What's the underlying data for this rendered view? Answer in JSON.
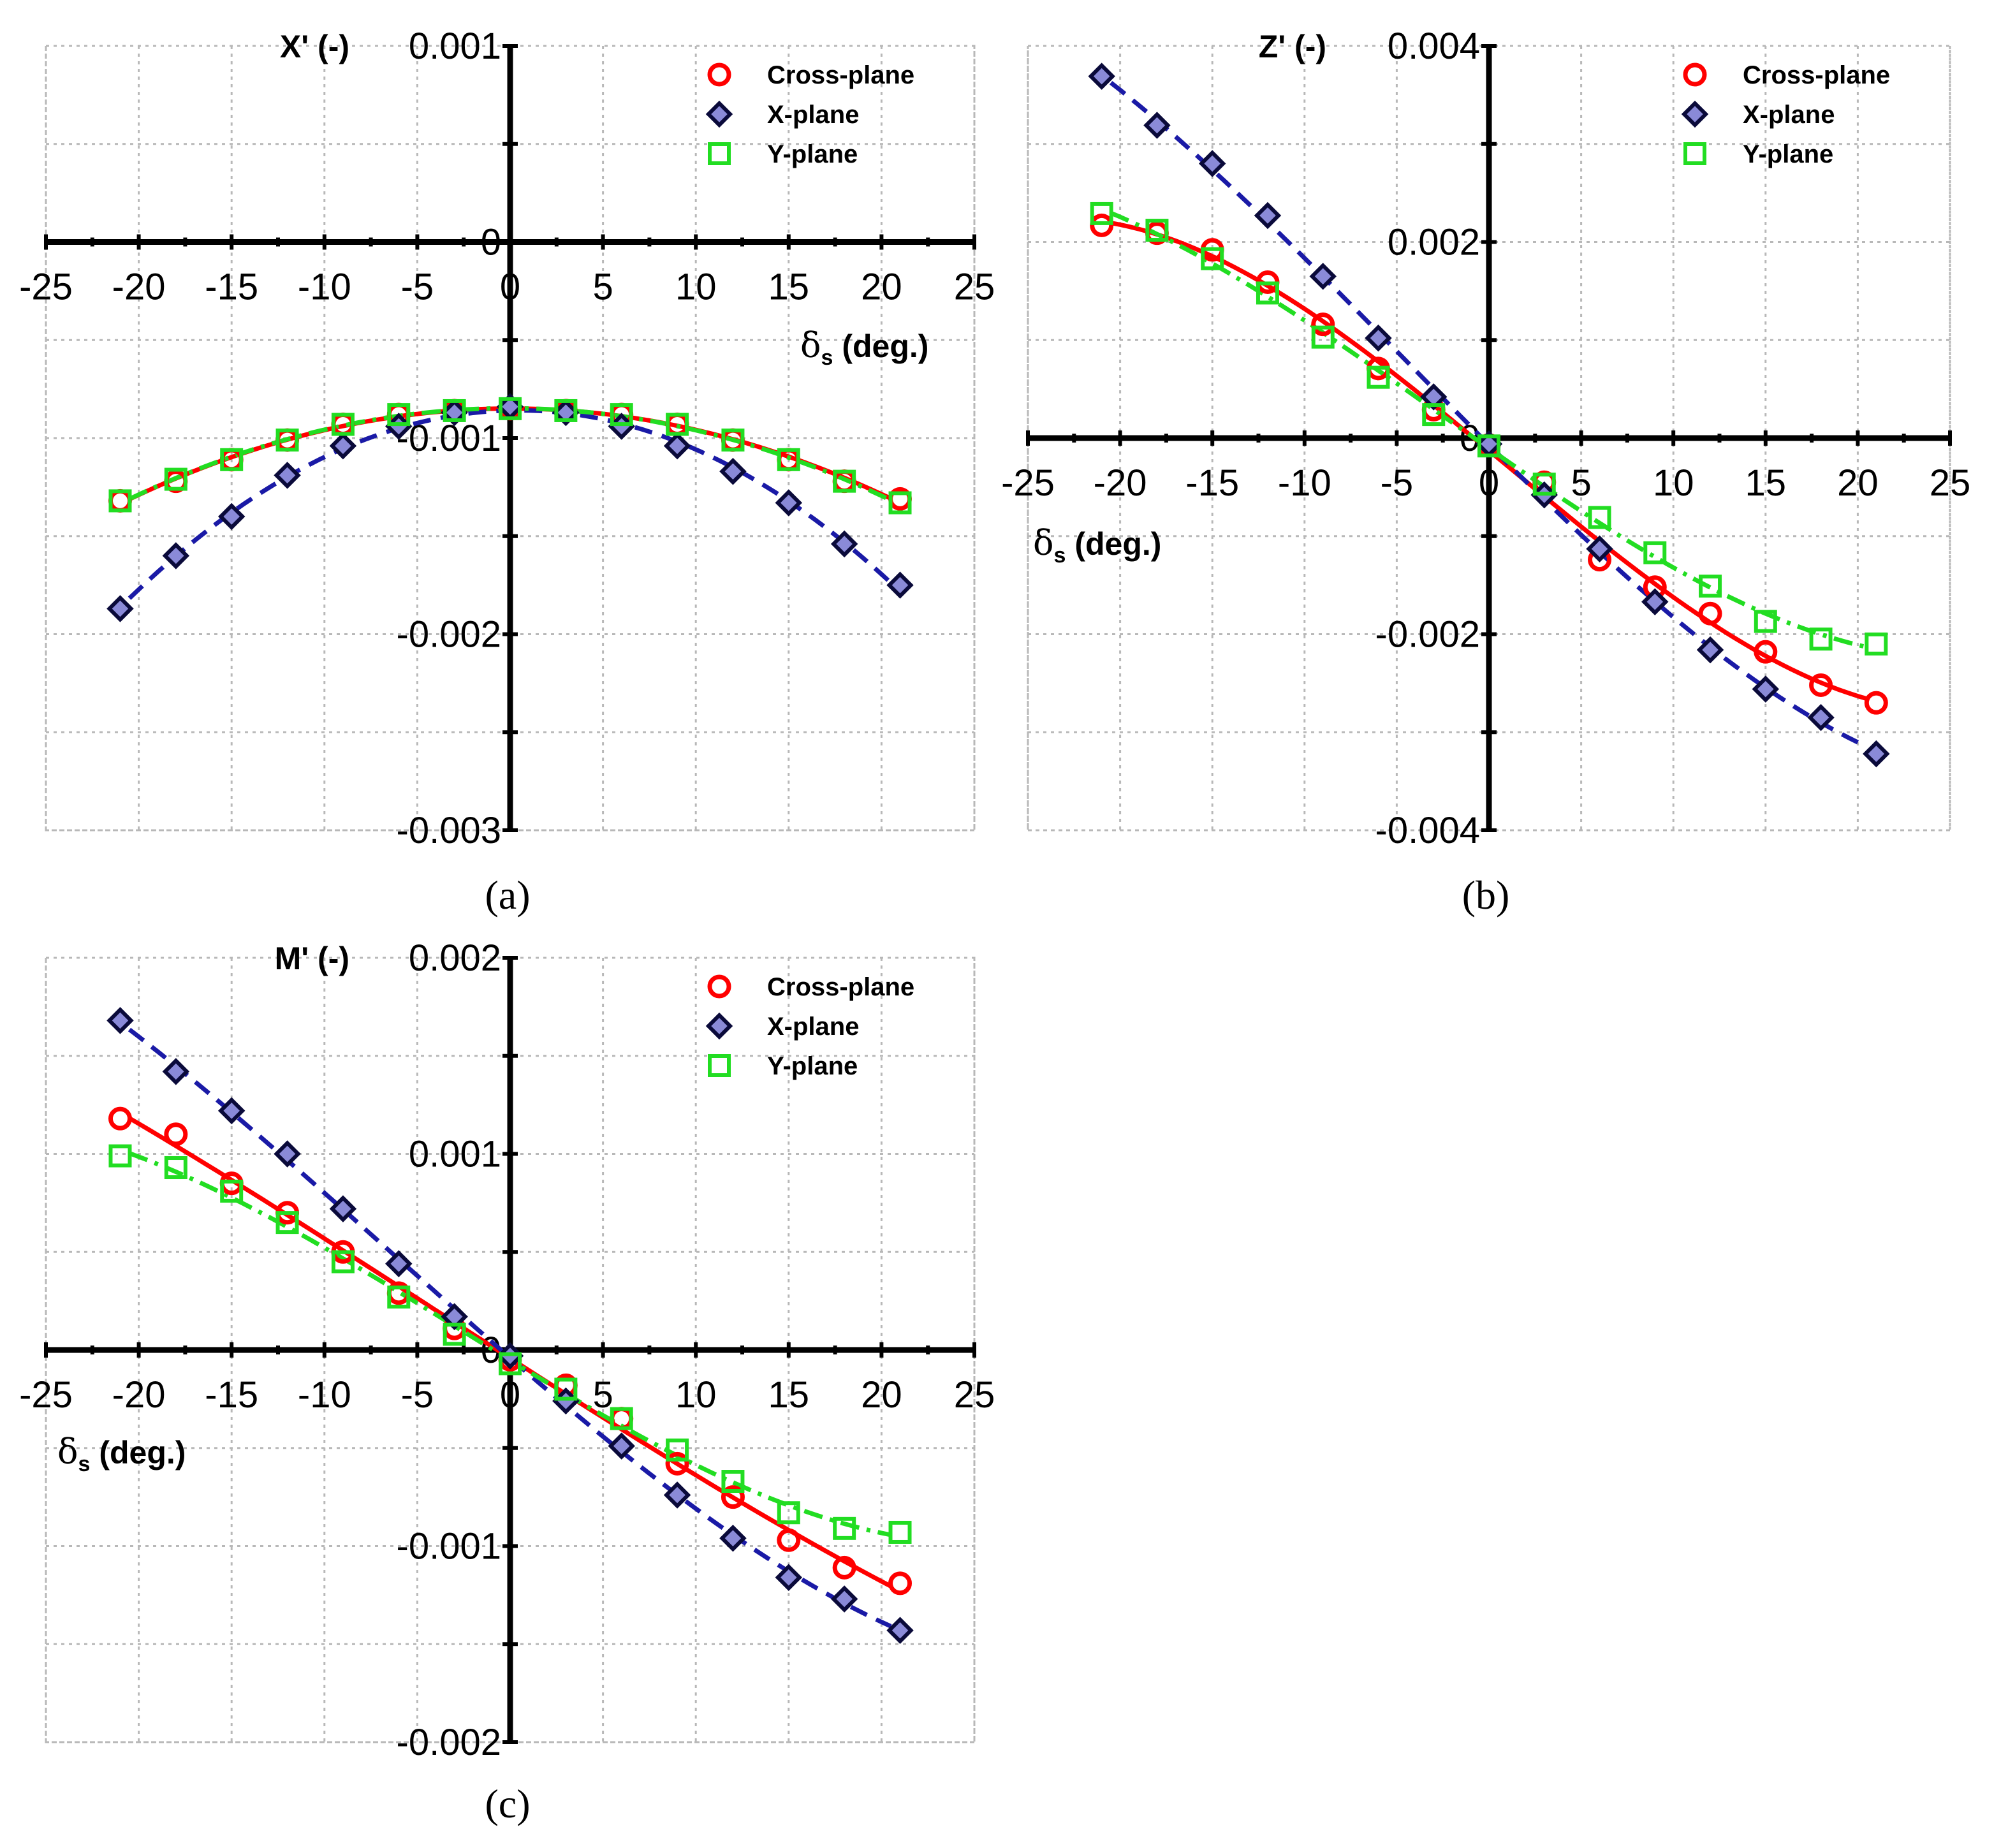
{
  "chart_data": [
    {
      "type": "scatter",
      "panel_label": "(a)",
      "ylabel": "X' (-)",
      "xlabel_symbol": "δ",
      "xlabel_sub": "s",
      "xlabel_rest": " (deg.)",
      "xlim": [
        -25,
        25
      ],
      "ylim": [
        -0.003,
        0.001
      ],
      "xticks": [
        -25,
        -20,
        -15,
        -10,
        -5,
        0,
        5,
        10,
        15,
        20,
        25
      ],
      "yticks": [
        0.001,
        0,
        -0.001,
        -0.002,
        -0.003
      ],
      "ytick_labels": [
        "0.001",
        "0",
        "-0.001",
        "-0.002",
        "-0.003"
      ],
      "grid": true,
      "legend": "top-right",
      "series": [
        {
          "name": "Cross-plane",
          "marker": "circle",
          "color": "#ff0000",
          "x": [
            -21,
            -18,
            -15,
            -12,
            -9,
            -6,
            -3,
            0,
            3,
            6,
            9,
            12,
            15,
            18,
            21
          ],
          "y": [
            -0.00132,
            -0.00122,
            -0.00111,
            -0.00101,
            -0.00093,
            -0.00088,
            -0.00086,
            -0.00085,
            -0.00086,
            -0.00088,
            -0.00093,
            -0.00101,
            -0.00111,
            -0.00122,
            -0.00131
          ],
          "fit": "solid"
        },
        {
          "name": "X-plane",
          "marker": "diamond",
          "color": "#1a1aa6",
          "x": [
            -21,
            -18,
            -15,
            -12,
            -9,
            -6,
            -3,
            0,
            3,
            6,
            9,
            12,
            15,
            18,
            21
          ],
          "y": [
            -0.00187,
            -0.0016,
            -0.0014,
            -0.00119,
            -0.00104,
            -0.00094,
            -0.00087,
            -0.00084,
            -0.00087,
            -0.00094,
            -0.00104,
            -0.00117,
            -0.00133,
            -0.00154,
            -0.00175
          ],
          "fit": "dashed"
        },
        {
          "name": "Y-plane",
          "marker": "square",
          "color": "#22dd22",
          "x": [
            -21,
            -18,
            -15,
            -12,
            -9,
            -6,
            -3,
            0,
            3,
            6,
            9,
            12,
            15,
            18,
            21
          ],
          "y": [
            -0.00132,
            -0.00121,
            -0.00111,
            -0.00101,
            -0.00093,
            -0.00088,
            -0.00086,
            -0.00085,
            -0.00086,
            -0.00088,
            -0.00093,
            -0.00101,
            -0.00111,
            -0.00122,
            -0.00133
          ],
          "fit": "dashdot"
        }
      ]
    },
    {
      "type": "scatter",
      "panel_label": "(b)",
      "ylabel": "Z' (-)",
      "xlabel_symbol": "δ",
      "xlabel_sub": "s",
      "xlabel_rest": " (deg.)",
      "xlim": [
        -25,
        25
      ],
      "ylim": [
        -0.004,
        0.004
      ],
      "xticks": [
        -25,
        -20,
        -15,
        -10,
        -5,
        0,
        5,
        10,
        15,
        20,
        25
      ],
      "yticks": [
        0.004,
        0.002,
        0,
        -0.002,
        -0.004
      ],
      "ytick_labels": [
        "0.004",
        "0.002",
        "0",
        "-0.002",
        "-0.004"
      ],
      "grid": true,
      "legend": "top-right",
      "series": [
        {
          "name": "Cross-plane",
          "marker": "circle",
          "color": "#ff0000",
          "x": [
            -21,
            -18,
            -15,
            -12,
            -9,
            -6,
            -3,
            0,
            3,
            6,
            9,
            12,
            15,
            18,
            21
          ],
          "y": [
            0.00217,
            0.00209,
            0.00192,
            0.00159,
            0.00116,
            0.00071,
            0.00029,
            -7e-05,
            -0.00045,
            -0.00124,
            -0.00152,
            -0.00179,
            -0.00218,
            -0.00252,
            -0.0027
          ],
          "fit": "solid"
        },
        {
          "name": "X-plane",
          "marker": "diamond",
          "color": "#1a1aa6",
          "x": [
            -21,
            -18,
            -15,
            -12,
            -9,
            -6,
            -3,
            0,
            3,
            6,
            9,
            12,
            15,
            18,
            21
          ],
          "y": [
            0.00369,
            0.00319,
            0.0028,
            0.00227,
            0.00165,
            0.00102,
            0.00042,
            -6e-05,
            -0.00058,
            -0.00113,
            -0.00167,
            -0.00216,
            -0.00256,
            -0.00285,
            -0.00322
          ],
          "fit": "dashed"
        },
        {
          "name": "Y-plane",
          "marker": "square",
          "color": "#22dd22",
          "x": [
            -21,
            -18,
            -15,
            -12,
            -9,
            -6,
            -3,
            0,
            3,
            6,
            9,
            12,
            15,
            18,
            21
          ],
          "y": [
            0.00229,
            0.00212,
            0.00183,
            0.00148,
            0.00103,
            0.00062,
            0.00024,
            -8e-05,
            -0.00047,
            -0.00081,
            -0.00117,
            -0.00151,
            -0.00187,
            -0.00205,
            -0.0021
          ],
          "fit": "dashdot"
        }
      ]
    },
    {
      "type": "scatter",
      "panel_label": "(c)",
      "ylabel": "M' (-)",
      "xlabel_symbol": "δ",
      "xlabel_sub": "s",
      "xlabel_rest": " (deg.)",
      "xlim": [
        -25,
        25
      ],
      "ylim": [
        -0.002,
        0.002
      ],
      "xticks": [
        -25,
        -20,
        -15,
        -10,
        -5,
        0,
        5,
        10,
        15,
        20,
        25
      ],
      "yticks": [
        0.002,
        0.001,
        0,
        -0.001,
        -0.002
      ],
      "ytick_labels": [
        "0.002",
        "0.001",
        "0",
        "-0.001",
        "-0.002"
      ],
      "grid": true,
      "legend": "top-right",
      "series": [
        {
          "name": "Cross-plane",
          "marker": "circle",
          "color": "#ff0000",
          "x": [
            -21,
            -18,
            -15,
            -12,
            -9,
            -6,
            -3,
            0,
            3,
            6,
            9,
            12,
            15,
            18,
            21
          ],
          "y": [
            0.00118,
            0.0011,
            0.00085,
            0.0007,
            0.0005,
            0.00029,
            0.00011,
            -5e-05,
            -0.00018,
            -0.00035,
            -0.00058,
            -0.00075,
            -0.00097,
            -0.00111,
            -0.00119
          ],
          "fit": "solid"
        },
        {
          "name": "X-plane",
          "marker": "diamond",
          "color": "#1a1aa6",
          "x": [
            -21,
            -18,
            -15,
            -12,
            -9,
            -6,
            -3,
            0,
            3,
            6,
            9,
            12,
            15,
            18,
            21
          ],
          "y": [
            0.00168,
            0.00142,
            0.00122,
            0.001,
            0.00072,
            0.00044,
            0.00017,
            -3e-05,
            -0.00026,
            -0.00049,
            -0.00074,
            -0.00096,
            -0.00116,
            -0.00127,
            -0.00143
          ],
          "fit": "dashed"
        },
        {
          "name": "Y-plane",
          "marker": "square",
          "color": "#22dd22",
          "x": [
            -21,
            -18,
            -15,
            -12,
            -9,
            -6,
            -3,
            0,
            3,
            6,
            9,
            12,
            15,
            18,
            21
          ],
          "y": [
            0.00099,
            0.00093,
            0.00081,
            0.00065,
            0.00045,
            0.00027,
            8e-05,
            -7e-05,
            -0.0002,
            -0.00035,
            -0.00051,
            -0.00067,
            -0.00083,
            -0.00091,
            -0.00093
          ],
          "fit": "dashdot"
        }
      ]
    }
  ]
}
